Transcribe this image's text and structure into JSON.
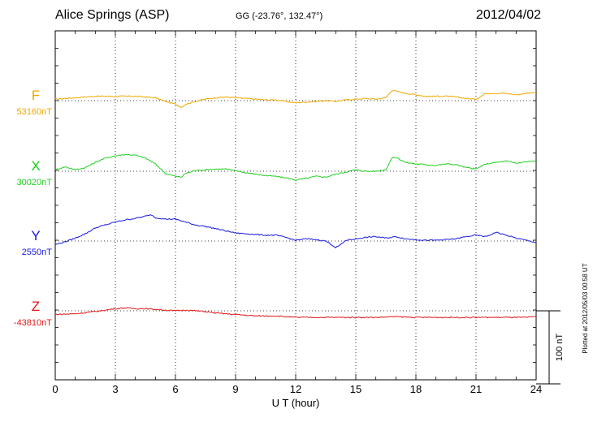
{
  "header": {
    "station": "Alice Springs (ASP)",
    "coordinates": "GG (-23.76°, 132.47°)",
    "date": "2012/04/02"
  },
  "footer": {
    "plotted": "Plotted at 2012/05/03 00:58 UT"
  },
  "chart_data": {
    "type": "line",
    "title": "Alice Springs (ASP)",
    "xlabel": "U T (hour)",
    "xlim": [
      0,
      24
    ],
    "x_ticks": [
      "0",
      "3",
      "6",
      "9",
      "12",
      "15",
      "18",
      "21",
      "24"
    ],
    "grid": true,
    "scale_bar": {
      "label": "100 nT",
      "value_nT": 100
    },
    "series": [
      {
        "name": "F",
        "baseline_label": "53160nT",
        "baseline_nT": 53160,
        "color": "#f0a800",
        "x": [
          0,
          0.5,
          1,
          1.5,
          2,
          2.5,
          3,
          3.5,
          4,
          4.5,
          5,
          5.5,
          6,
          6.3,
          6.5,
          7,
          7.5,
          8,
          8.5,
          9,
          9.5,
          10,
          10.5,
          11,
          11.5,
          12,
          12.5,
          13,
          13.5,
          14,
          14.5,
          15,
          15.5,
          16,
          16.5,
          16.8,
          17,
          17.5,
          18,
          18.5,
          19,
          19.5,
          20,
          20.5,
          21,
          21.5,
          22,
          22.5,
          23,
          23.5,
          24
        ],
        "y": [
          2,
          3,
          4,
          5,
          6,
          6,
          6,
          6,
          6,
          5,
          4,
          -1,
          -5,
          -9,
          -5,
          -1,
          2,
          4,
          5,
          4,
          3,
          2,
          1,
          1,
          -1,
          -3,
          -2,
          -1,
          0,
          -1,
          1,
          2,
          3,
          2,
          4,
          14,
          13,
          10,
          8,
          6,
          6,
          6,
          5,
          3,
          2,
          10,
          10,
          10,
          8,
          10,
          12
        ]
      },
      {
        "name": "X",
        "baseline_label": "30020nT",
        "baseline_nT": 30020,
        "color": "#20d020",
        "x": [
          0,
          0.5,
          1,
          1.5,
          2,
          2.5,
          3,
          3.5,
          4,
          4.5,
          5,
          5.5,
          6,
          6.3,
          6.5,
          7,
          7.5,
          8,
          8.5,
          9,
          9.5,
          10,
          10.5,
          11,
          11.5,
          12,
          12.5,
          13,
          13.5,
          14,
          14.5,
          15,
          15.5,
          16,
          16.5,
          16.8,
          17,
          17.5,
          18,
          18.5,
          19,
          19.5,
          20,
          20.5,
          21,
          21.5,
          22,
          22.5,
          23,
          23.5,
          24
        ],
        "y": [
          2,
          6,
          2,
          5,
          12,
          18,
          21,
          23,
          22,
          18,
          10,
          -3,
          -7,
          -8,
          -3,
          1,
          2,
          3,
          3,
          1,
          -2,
          -4,
          -6,
          -7,
          -9,
          -12,
          -10,
          -7,
          -8,
          -4,
          -1,
          2,
          0,
          0,
          2,
          18,
          19,
          12,
          10,
          9,
          8,
          10,
          9,
          5,
          3,
          10,
          12,
          14,
          11,
          13,
          14
        ]
      },
      {
        "name": "Y",
        "baseline_label": "2550nT",
        "baseline_nT": 2550,
        "color": "#1818e0",
        "x": [
          0,
          0.5,
          1,
          1.5,
          2,
          2.5,
          3,
          3.5,
          4,
          4.5,
          4.8,
          5,
          5.5,
          6,
          6.5,
          7,
          7.5,
          8,
          8.5,
          9,
          9.5,
          10,
          10.5,
          11,
          11.5,
          12,
          12.5,
          13,
          13.5,
          13.8,
          14,
          14.3,
          14.5,
          15,
          15.5,
          16,
          16.5,
          17,
          17.5,
          18,
          18.5,
          19,
          19.5,
          20,
          20.5,
          21,
          21.5,
          22,
          22.5,
          23,
          23.5,
          24
        ],
        "y": [
          -5,
          -1,
          4,
          10,
          18,
          22,
          26,
          29,
          31,
          34,
          36,
          32,
          30,
          30,
          26,
          22,
          20,
          17,
          14,
          11,
          10,
          9,
          8,
          8,
          5,
          1,
          3,
          2,
          0,
          -5,
          -9,
          -4,
          1,
          3,
          5,
          6,
          4,
          6,
          3,
          2,
          1,
          1,
          2,
          3,
          6,
          8,
          6,
          12,
          8,
          4,
          1,
          -2
        ]
      },
      {
        "name": "Z",
        "baseline_label": "-43810nT",
        "baseline_nT": -43810,
        "color": "#e01818",
        "x": [
          0,
          1,
          2,
          3,
          3.5,
          4,
          4.5,
          5,
          5.5,
          6,
          6.5,
          7,
          7.5,
          8,
          9,
          10,
          11,
          12,
          13,
          14,
          15,
          16,
          17,
          18,
          19,
          20,
          21,
          22,
          23,
          23.5,
          24
        ],
        "y": [
          -5,
          -4,
          -1,
          3,
          4,
          3,
          3,
          2,
          1,
          0,
          1,
          0,
          -1,
          -3,
          -5,
          -7,
          -7,
          -9,
          -9,
          -9,
          -9,
          -9,
          -8,
          -9,
          -9,
          -9,
          -9,
          -9,
          -9,
          -9,
          -8
        ]
      }
    ]
  }
}
